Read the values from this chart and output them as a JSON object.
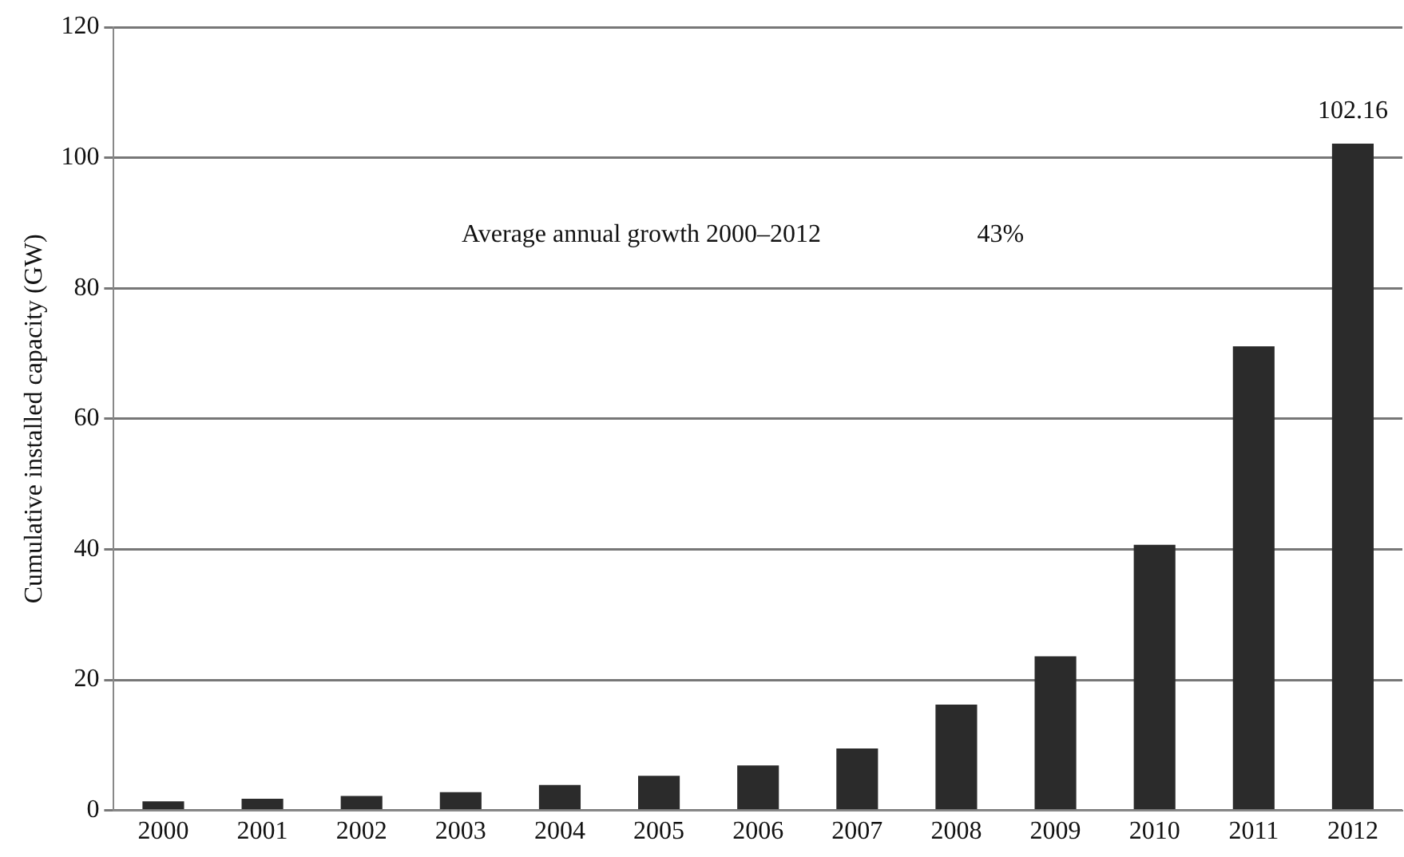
{
  "chart_data": {
    "type": "bar",
    "ylabel": "Cumulative installed capacity (GW)",
    "categories": [
      "2000",
      "2001",
      "2002",
      "2003",
      "2004",
      "2005",
      "2006",
      "2007",
      "2008",
      "2009",
      "2010",
      "2011",
      "2012"
    ],
    "values": [
      1.4,
      1.8,
      2.2,
      2.8,
      3.9,
      5.3,
      6.9,
      9.5,
      16.2,
      23.6,
      40.7,
      71.1,
      102.16
    ],
    "value_labels": [
      null,
      null,
      null,
      null,
      null,
      null,
      null,
      null,
      null,
      null,
      null,
      null,
      "102.16"
    ],
    "color": "#2b2b2b",
    "ylim": [
      0,
      120
    ],
    "yticks": [
      0,
      20,
      40,
      60,
      80,
      100,
      120
    ],
    "grid": "y",
    "legend": false,
    "annotations": [
      "Average annual growth 2000–2012",
      "43%"
    ]
  }
}
